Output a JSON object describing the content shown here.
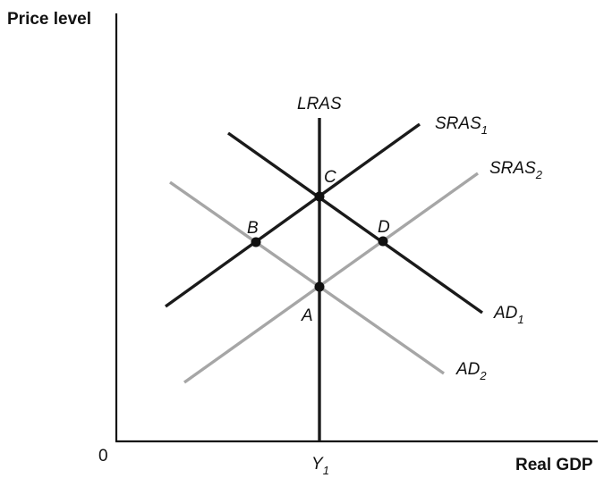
{
  "axes": {
    "y_label": "Price level",
    "x_label": "Real GDP",
    "origin": "0",
    "x_tick_main": "Y",
    "x_tick_sub": "1"
  },
  "curves": {
    "lras": {
      "main": "LRAS",
      "sub": "",
      "color": "#1a1a1a"
    },
    "sras1": {
      "main": "SRAS",
      "sub": "1",
      "color": "#1a1a1a"
    },
    "sras2": {
      "main": "SRAS",
      "sub": "2",
      "color": "#a6a6a6"
    },
    "ad1": {
      "main": "AD",
      "sub": "1",
      "color": "#1a1a1a"
    },
    "ad2": {
      "main": "AD",
      "sub": "2",
      "color": "#a6a6a6"
    }
  },
  "points": {
    "a": "A",
    "b": "B",
    "c": "C",
    "d": "D"
  }
}
